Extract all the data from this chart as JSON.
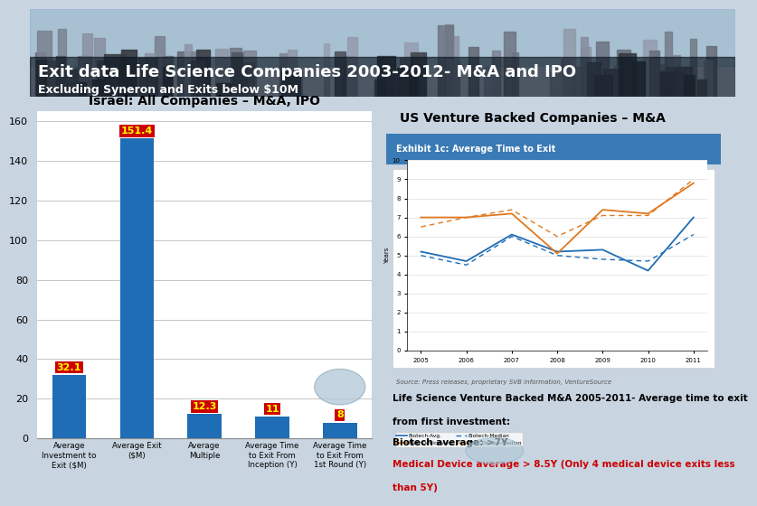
{
  "title": "Exit data Life Science Companies 2003-2012- M&A and IPO",
  "subtitle": "Excluding Syneron and Exits below $10M",
  "left_panel_title": "Israel: All Companies – M&A, IPO",
  "right_panel_title": "US Venture Backed Companies – M&A",
  "bar_categories": [
    "Average\nInvestment to\nExit ($M)",
    "Average Exit\n($M)",
    "Average\nMultiple",
    "Average Time\nto Exit From\nInception (Y) 1st Round (Y)",
    "Average Time\nto Exit From\n1st Round (Y)"
  ],
  "bar_xlabels": [
    "Average\nInvestment to\nExit ($M)",
    "Average Exit\n($M)",
    "Average\nMultiple",
    "Average Time\nto Exit From\nInception (Y)",
    "Average Time\nto Exit From\n1st Round (Y)"
  ],
  "bar_values": [
    32.1,
    151.4,
    12.3,
    11,
    8
  ],
  "bar_color": "#1f6db5",
  "label_bg_color": "#cc0000",
  "label_text_color": "#ffff00",
  "ylim": [
    0,
    165
  ],
  "yticks": [
    0,
    20,
    40,
    60,
    80,
    100,
    120,
    140,
    160
  ],
  "ellipse_color": "#b0c8d8",
  "note_text_line1": "Life Science Venture Backed M&A 2005-2011- Average time to exit",
  "note_text_line2": "from first investment:",
  "note_text_line3": "Biotech average: >7Y",
  "note_text_red1": "Medical Device average > 8.5Y (Only 4 medical device exits less",
  "note_text_red2": "than 5Y)",
  "source_text": "Source: Press releases, proprietary SVB information, VentureSource",
  "exhibit_title": "Exhibit 1c: Average Time to Exit",
  "years": [
    2005,
    2006,
    2007,
    2008,
    2009,
    2010,
    2011
  ],
  "biotech_avg": [
    5.2,
    4.7,
    6.1,
    5.2,
    5.3,
    4.2,
    7.0
  ],
  "biotech_median": [
    5.0,
    4.5,
    6.0,
    5.0,
    4.8,
    4.7,
    6.1
  ],
  "meddev_avg": [
    7.0,
    7.0,
    7.2,
    5.1,
    7.4,
    7.2,
    8.8
  ],
  "meddev_median": [
    6.5,
    7.0,
    7.4,
    6.0,
    7.1,
    7.1,
    9.0
  ],
  "biotech_color": "#1f6db5",
  "meddev_color": "#e07820",
  "bg_color": "#c8d4e0",
  "header_dark_color": "#1a2a3a",
  "panel_bg": "#f0f4f8"
}
